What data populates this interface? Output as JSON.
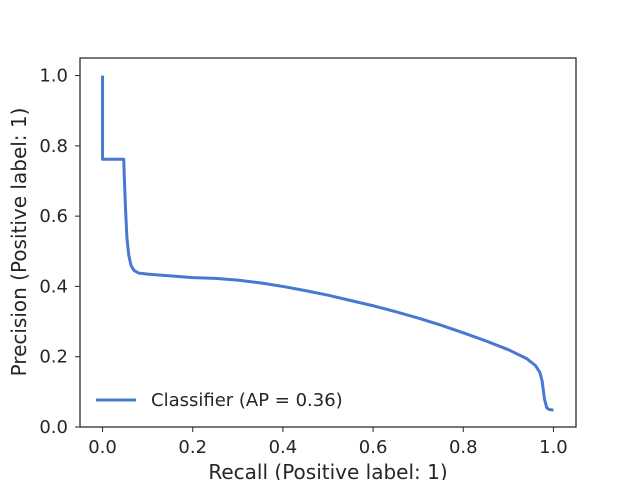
{
  "chart_data": {
    "type": "line",
    "title": "",
    "xlabel": "Recall (Positive label: 1)",
    "ylabel": "Precision (Positive label: 1)",
    "xlim": [
      -0.05,
      1.05
    ],
    "ylim": [
      0.0,
      1.05
    ],
    "grid": false,
    "legend_position": "lower-left",
    "xticks": [
      "0.0",
      "0.2",
      "0.4",
      "0.6",
      "0.8",
      "1.0"
    ],
    "yticks": [
      "0.0",
      "0.2",
      "0.4",
      "0.6",
      "0.8",
      "1.0"
    ],
    "series": [
      {
        "name": "Classifier (AP = 0.36)",
        "color": "#4878d0",
        "x": [
          0.0,
          0.0,
          0.0,
          0.047,
          0.048,
          0.051,
          0.054,
          0.058,
          0.063,
          0.07,
          0.08,
          0.1,
          0.15,
          0.2,
          0.25,
          0.3,
          0.35,
          0.4,
          0.45,
          0.5,
          0.55,
          0.6,
          0.65,
          0.7,
          0.75,
          0.8,
          0.85,
          0.9,
          0.94,
          0.96,
          0.97,
          0.975,
          0.98,
          0.985,
          0.99,
          1.0
        ],
        "y": [
          1.0,
          0.762,
          0.762,
          0.762,
          0.72,
          0.62,
          0.54,
          0.49,
          0.46,
          0.445,
          0.438,
          0.435,
          0.43,
          0.425,
          0.423,
          0.418,
          0.41,
          0.4,
          0.388,
          0.375,
          0.36,
          0.345,
          0.328,
          0.31,
          0.29,
          0.268,
          0.245,
          0.22,
          0.195,
          0.175,
          0.155,
          0.13,
          0.08,
          0.055,
          0.05,
          0.048
        ]
      }
    ]
  }
}
